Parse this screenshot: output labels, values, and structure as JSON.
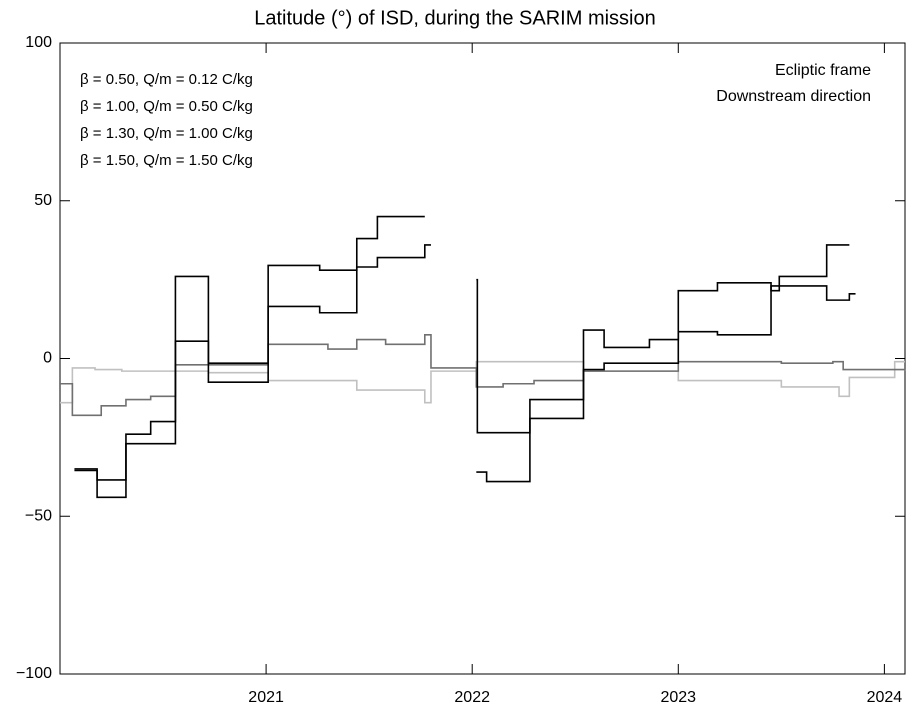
{
  "chart_data": {
    "type": "line",
    "step": "post",
    "title": "Latitude (°) of ISD, during the SARIM mission",
    "annotations": [
      "Ecliptic frame",
      "Downstream direction"
    ],
    "xlim": [
      2020.0,
      2024.1
    ],
    "xticks": [
      2021,
      2022,
      2023,
      2024
    ],
    "ylim": [
      -100,
      100
    ],
    "yticks": [
      {
        "value": -100,
        "label": "−100"
      },
      {
        "value": -50,
        "label": "−50"
      },
      0,
      50,
      100
    ],
    "grid": false,
    "legend": "upper left",
    "series": [
      {
        "name": "β = 0.50, Q/m = 0.12 C/kg",
        "color": "#c0c0c0",
        "x": [
          2020.0,
          2020.06,
          2020.17,
          2020.3,
          2020.72,
          2021.01,
          2021.44,
          2021.77,
          2021.8,
          2022.02,
          2022.54,
          2023.0,
          2023.5,
          2023.78,
          2023.83,
          2024.05,
          2024.1
        ],
        "values": [
          -14,
          -3,
          -3.5,
          -4,
          -4.5,
          -7,
          -10,
          -14,
          -4,
          -1,
          -4,
          -7,
          -9,
          -12,
          -6,
          -1,
          -1
        ]
      },
      {
        "name": "β = 1.00, Q/m = 0.50 C/kg",
        "color": "#707070",
        "x": [
          2020.0,
          2020.06,
          2020.2,
          2020.32,
          2020.44,
          2020.56,
          2021.01,
          2021.3,
          2021.44,
          2021.58,
          2021.77,
          2021.8,
          2022.02,
          2022.15,
          2022.3,
          2022.54,
          2023.0,
          2023.5,
          2023.75,
          2023.8,
          2024.1
        ],
        "values": [
          -8,
          -18,
          -15,
          -13,
          -12,
          -2,
          4.5,
          3,
          6,
          4.5,
          7.5,
          -3,
          -9,
          -8,
          -7,
          -4,
          -1,
          -1.5,
          -1,
          -3.5,
          -4
        ]
      },
      {
        "name": "β = 1.30, Q/m = 1.00 C/kg",
        "color": "#000000",
        "x": [
          2020.07,
          2020.18,
          2020.32,
          2020.56,
          2020.72,
          2021.01,
          2021.26,
          2021.44,
          2021.54,
          2021.77,
          2021.9,
          2022.02,
          2022.025,
          2022.28,
          2022.54,
          2022.64,
          2022.86,
          2023.0,
          2023.19,
          2023.45,
          2023.49,
          2023.72,
          2023.83
        ],
        "values": [
          -35,
          -44,
          -27,
          26,
          -7.5,
          29.5,
          28,
          38,
          45,
          45,
          null,
          25,
          -23.5,
          -19,
          9,
          3.5,
          6,
          21.5,
          24,
          21.5,
          26,
          36,
          36
        ]
      },
      {
        "name": "β = 1.50, Q/m = 1.50 C/kg",
        "color": "#000000",
        "x": [
          2020.07,
          2020.18,
          2020.32,
          2020.44,
          2020.56,
          2020.72,
          2021.01,
          2021.26,
          2021.44,
          2021.54,
          2021.77,
          2021.8,
          2021.9,
          2022.02,
          2022.07,
          2022.28,
          2022.54,
          2022.64,
          2023.0,
          2023.19,
          2023.45,
          2023.72,
          2023.83,
          2023.86
        ],
        "values": [
          -35.5,
          -38.5,
          -24,
          -20,
          5.5,
          -1.5,
          16.5,
          14.5,
          29,
          32,
          36,
          36,
          null,
          -36,
          -39,
          -13,
          -3.5,
          -1.5,
          8.5,
          7.5,
          23,
          18.5,
          20.5,
          20.5
        ]
      }
    ]
  }
}
